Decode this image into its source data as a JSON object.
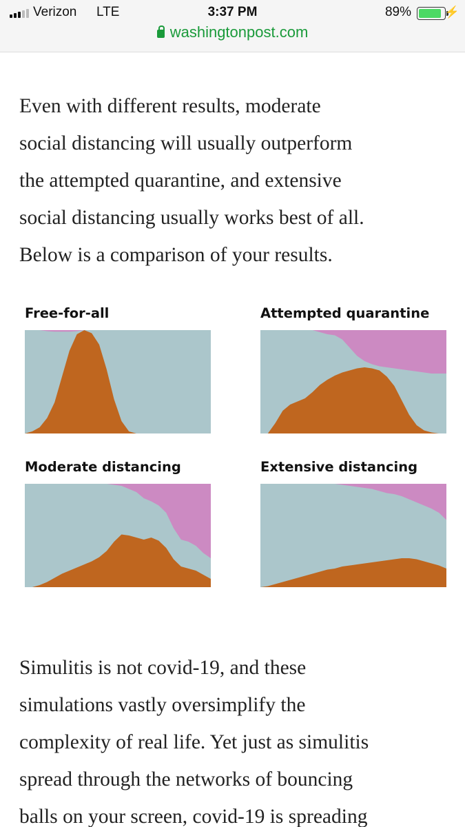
{
  "status_bar": {
    "carrier": "Verizon",
    "network": "LTE",
    "time": "3:37 PM",
    "battery_percent": "89%",
    "battery_level": 0.89,
    "signal_bars_on": 3,
    "signal_bars_total": 5
  },
  "browser": {
    "url": "washingtonpost.com"
  },
  "article": {
    "para1_lines": [
      "Even with different results, moderate",
      "social distancing will usually outperform",
      "the attempted quarantine, and extensive",
      "social distancing usually works best of all.",
      "Below is a comparison of your results."
    ],
    "para2_lines": [
      "Simulitis is not covid-19, and these",
      "simulations vastly oversimplify the",
      "complexity of real life. Yet just as simulitis",
      "spread through the networks of bouncing",
      "balls on your screen, covid-19 is spreading"
    ]
  },
  "colors": {
    "healthy": "#abc6cb",
    "sick": "#bf661f",
    "recovered": "#cc8ac2"
  },
  "chart_data": [
    {
      "type": "area",
      "title": "Free-for-all",
      "x": [
        0,
        0.04,
        0.08,
        0.12,
        0.16,
        0.2,
        0.24,
        0.28,
        0.32,
        0.36,
        0.4,
        0.44,
        0.48,
        0.52,
        0.56,
        0.6,
        0.64,
        0.68,
        0.72,
        0.76,
        0.8,
        0.84,
        0.88,
        0.92,
        0.96,
        1
      ],
      "series": [
        {
          "values": [
            0,
            0.02,
            0.06,
            0.15,
            0.3,
            0.55,
            0.8,
            0.96,
            1.0,
            0.97,
            0.86,
            0.62,
            0.33,
            0.12,
            0.02,
            0,
            0,
            0,
            0,
            0,
            0,
            0,
            0,
            0,
            0,
            0
          ]
        },
        {
          "values": [
            1.0,
            1.0,
            1.0,
            0.99,
            0.985,
            0.985,
            0.985,
            0.99,
            1.0,
            1.0,
            1.0,
            1.0,
            1.0,
            1.0,
            1.0,
            1.0,
            1.0,
            1.0,
            1.0,
            1.0,
            1.0,
            1.0,
            1.0,
            1.0,
            1.0,
            1.0
          ]
        }
      ]
    },
    {
      "type": "area",
      "title": "Attempted quarantine",
      "x": [
        0,
        0.04,
        0.08,
        0.12,
        0.16,
        0.2,
        0.24,
        0.28,
        0.32,
        0.36,
        0.4,
        0.44,
        0.48,
        0.52,
        0.56,
        0.6,
        0.64,
        0.68,
        0.72,
        0.76,
        0.8,
        0.84,
        0.88,
        0.92,
        0.96,
        1
      ],
      "series": [
        {
          "values": [
            0,
            0,
            0.1,
            0.22,
            0.28,
            0.31,
            0.34,
            0.4,
            0.47,
            0.52,
            0.56,
            0.59,
            0.61,
            0.63,
            0.64,
            0.63,
            0.61,
            0.55,
            0.46,
            0.32,
            0.18,
            0.08,
            0.03,
            0.01,
            0,
            0
          ]
        },
        {
          "values": [
            1.0,
            1.0,
            1.0,
            1.0,
            1.0,
            1.0,
            1.0,
            1.0,
            0.98,
            0.96,
            0.95,
            0.91,
            0.83,
            0.75,
            0.7,
            0.67,
            0.65,
            0.64,
            0.63,
            0.62,
            0.61,
            0.6,
            0.59,
            0.58,
            0.58,
            0.58
          ]
        }
      ]
    },
    {
      "type": "area",
      "title": "Moderate distancing",
      "x": [
        0,
        0.04,
        0.08,
        0.12,
        0.16,
        0.2,
        0.24,
        0.28,
        0.32,
        0.36,
        0.4,
        0.44,
        0.48,
        0.52,
        0.56,
        0.6,
        0.64,
        0.68,
        0.72,
        0.76,
        0.8,
        0.84,
        0.88,
        0.92,
        0.96,
        1
      ],
      "series": [
        {
          "values": [
            0,
            0,
            0.02,
            0.05,
            0.09,
            0.13,
            0.16,
            0.19,
            0.22,
            0.25,
            0.29,
            0.35,
            0.44,
            0.51,
            0.5,
            0.48,
            0.46,
            0.48,
            0.45,
            0.38,
            0.27,
            0.2,
            0.18,
            0.16,
            0.12,
            0.08
          ]
        },
        {
          "values": [
            1.0,
            1.0,
            1.0,
            1.0,
            1.0,
            1.0,
            1.0,
            1.0,
            1.0,
            1.0,
            1.0,
            1.0,
            0.99,
            0.98,
            0.95,
            0.92,
            0.86,
            0.83,
            0.79,
            0.72,
            0.57,
            0.46,
            0.44,
            0.4,
            0.33,
            0.28
          ]
        }
      ]
    },
    {
      "type": "area",
      "title": "Extensive distancing",
      "x": [
        0,
        0.04,
        0.08,
        0.12,
        0.16,
        0.2,
        0.24,
        0.28,
        0.32,
        0.36,
        0.4,
        0.44,
        0.48,
        0.52,
        0.56,
        0.6,
        0.64,
        0.68,
        0.72,
        0.76,
        0.8,
        0.84,
        0.88,
        0.92,
        0.96,
        1
      ],
      "series": [
        {
          "values": [
            0,
            0.01,
            0.03,
            0.05,
            0.07,
            0.09,
            0.11,
            0.13,
            0.15,
            0.17,
            0.18,
            0.2,
            0.21,
            0.22,
            0.23,
            0.24,
            0.25,
            0.26,
            0.27,
            0.28,
            0.28,
            0.27,
            0.25,
            0.23,
            0.21,
            0.18
          ]
        },
        {
          "values": [
            1.0,
            1.0,
            1.0,
            1.0,
            1.0,
            1.0,
            1.0,
            1.0,
            1.0,
            1.0,
            1.0,
            0.99,
            0.98,
            0.97,
            0.96,
            0.95,
            0.93,
            0.91,
            0.9,
            0.88,
            0.85,
            0.82,
            0.79,
            0.76,
            0.72,
            0.65
          ]
        }
      ]
    }
  ]
}
